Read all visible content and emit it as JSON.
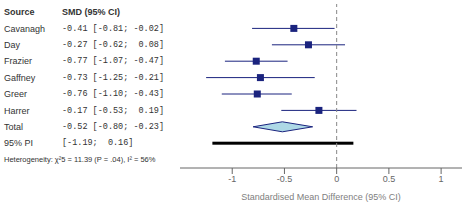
{
  "chart_data": {
    "type": "forest",
    "xlabel": "Standardised Mean Difference (95% CI)",
    "headers": [
      "Source",
      "SMD (95% CI)"
    ],
    "categories": [
      "Cavanagh",
      "Day",
      "Frazier",
      "Gaffney",
      "Greer",
      "Harrer"
    ],
    "values": [
      -0.41,
      -0.27,
      -0.77,
      -0.73,
      -0.76,
      -0.17
    ],
    "ci_lo": [
      -0.81,
      -0.62,
      -1.07,
      -1.25,
      -1.1,
      -0.53
    ],
    "ci_hi": [
      -0.02,
      0.08,
      -0.47,
      -0.21,
      -0.43,
      0.19
    ],
    "value_labels": [
      "-0.41 [-0.81; -0.02]",
      "-0.27 [-0.62;  0.08]",
      "-0.77 [-1.07; -0.47]",
      "-0.73 [-1.25; -0.21]",
      "-0.76 [-1.10; -0.43]",
      "-0.17 [-0.53;  0.19]"
    ],
    "color": "#1a237e",
    "total": {
      "label": "Total",
      "value": -0.52,
      "ci_lo": -0.8,
      "ci_hi": -0.23,
      "value_label": "-0.52 [-0.80; -0.23]",
      "color": "#add8e6"
    },
    "prediction_interval": {
      "label": "95% PI",
      "ci_lo": -1.19,
      "ci_hi": 0.16,
      "value_label": "[-1.19;  0.16]",
      "color": "#000000"
    },
    "annotation": "Heterogeneity: χ²5 = 11.39 (P = .04), I² = 56%",
    "reference_line": {
      "value": 0,
      "color": "#888888"
    },
    "xlim": [
      -1.5,
      1.2
    ],
    "xticks": [
      -1,
      -0.5,
      0,
      0.5,
      1
    ]
  }
}
